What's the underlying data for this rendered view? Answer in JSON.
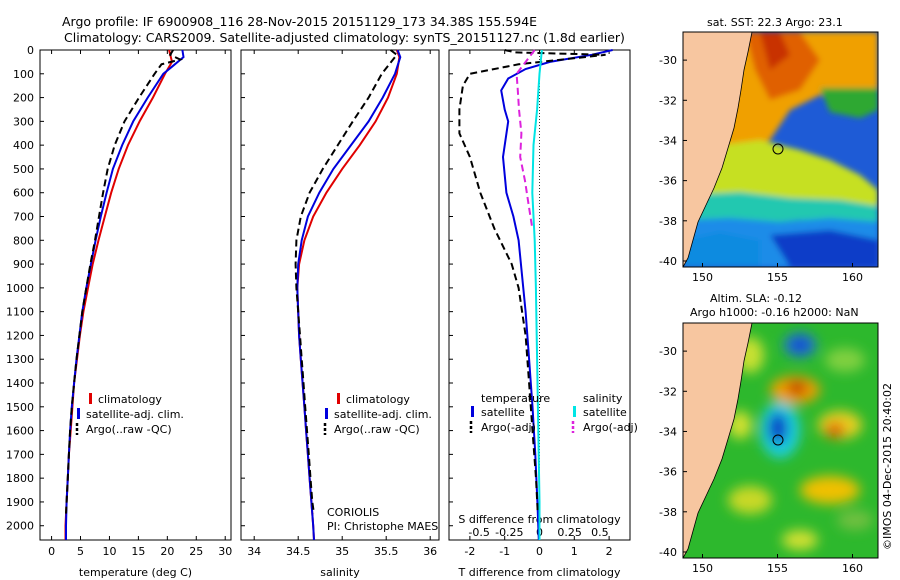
{
  "title_line1": "Argo profile: IF 6900908_116 28-Nov-2015 20151129_173 34.38S 155.594E",
  "title_line2": "Climatology: CARS2009. Satellite-adjusted climatology: synTS_20151127.nc (1.8d earlier)",
  "colors": {
    "climatology": "#e00000",
    "satellite": "#0000dd",
    "argo": "#000000",
    "sat_salinity": "#00e5e5",
    "argo_salinity": "#dd22dd",
    "land": "#f7c6a0"
  },
  "depth_ticks": [
    0,
    100,
    200,
    300,
    400,
    500,
    600,
    700,
    800,
    900,
    1000,
    1100,
    1200,
    1300,
    1400,
    1500,
    1600,
    1700,
    1800,
    1900,
    2000
  ],
  "legend_left": {
    "items": [
      "climatology",
      "satellite-adj. clim.",
      "Argo(..raw -QC)"
    ]
  },
  "diff_legend": {
    "temp_head": "temperature",
    "sal_head": "salinity",
    "temp_items": [
      "satellite",
      "Argo(-adj)"
    ],
    "sal_items": [
      "satellite",
      "Argo(-adj)"
    ]
  },
  "credit": {
    "line1": "CORIOLIS",
    "line2": "PI: Christophe MAES"
  },
  "sst_map": {
    "title": "sat. SST: 22.3 Argo: 23.1",
    "xticks": [
      "150",
      "155",
      "160"
    ],
    "yticks": [
      "-30",
      "-32",
      "-34",
      "-36",
      "-38",
      "-40"
    ]
  },
  "sla_map": {
    "title1": "Altim. SLA: -0.12",
    "title2": "Argo h1000: -0.16 h2000: NaN",
    "xticks": [
      "150",
      "155",
      "160"
    ],
    "yticks": [
      "-30",
      "-32",
      "-34",
      "-36",
      "-38",
      "-40"
    ]
  },
  "watermark": "©IMOS 04-Dec-2015 20:40:02",
  "chart_data": [
    {
      "type": "line",
      "xlabel": "temperature (deg C)",
      "xticks": [
        "0",
        "5",
        "10",
        "15",
        "20",
        "25",
        "30"
      ],
      "xlim": [
        -2,
        31
      ],
      "ylim": [
        2060,
        0
      ],
      "series": [
        {
          "name": "climatology",
          "color": "#e00000",
          "dash": false,
          "points": [
            [
              20.3,
              0
            ],
            [
              20.8,
              50
            ],
            [
              19.6,
              100
            ],
            [
              17.5,
              200
            ],
            [
              15.2,
              300
            ],
            [
              13.2,
              400
            ],
            [
              11.6,
              500
            ],
            [
              10.3,
              600
            ],
            [
              9.2,
              700
            ],
            [
              8.1,
              800
            ],
            [
              7.1,
              900
            ],
            [
              6.3,
              1000
            ],
            [
              5.5,
              1100
            ],
            [
              4.9,
              1200
            ],
            [
              4.4,
              1300
            ],
            [
              3.9,
              1400
            ],
            [
              3.6,
              1500
            ],
            [
              3.3,
              1600
            ],
            [
              3.0,
              1700
            ],
            [
              2.8,
              1800
            ],
            [
              2.6,
              1900
            ],
            [
              2.4,
              2000
            ],
            [
              2.4,
              2060
            ]
          ]
        },
        {
          "name": "satellite-adj. clim.",
          "color": "#0000dd",
          "dash": false,
          "points": [
            [
              22.6,
              0
            ],
            [
              22.8,
              30
            ],
            [
              20.8,
              70
            ],
            [
              19.3,
              100
            ],
            [
              16.6,
              200
            ],
            [
              14.1,
              300
            ],
            [
              12.2,
              400
            ],
            [
              10.6,
              500
            ],
            [
              9.5,
              600
            ],
            [
              8.5,
              700
            ],
            [
              7.6,
              800
            ],
            [
              6.8,
              900
            ],
            [
              6.0,
              1000
            ],
            [
              5.3,
              1100
            ],
            [
              4.8,
              1200
            ],
            [
              4.3,
              1300
            ],
            [
              3.9,
              1400
            ],
            [
              3.5,
              1500
            ],
            [
              3.2,
              1600
            ],
            [
              3.0,
              1700
            ],
            [
              2.8,
              1800
            ],
            [
              2.6,
              1900
            ],
            [
              2.5,
              2000
            ],
            [
              2.5,
              2060
            ]
          ]
        },
        {
          "name": "Argo(..raw -QC)",
          "color": "#000000",
          "dash": true,
          "points": [
            [
              21.0,
              0
            ],
            [
              20.5,
              20
            ],
            [
              22.2,
              40
            ],
            [
              19.0,
              60
            ],
            [
              17.8,
              100
            ],
            [
              15.1,
              200
            ],
            [
              12.6,
              300
            ],
            [
              10.9,
              400
            ],
            [
              9.7,
              500
            ],
            [
              8.9,
              600
            ],
            [
              8.2,
              700
            ],
            [
              7.5,
              800
            ],
            [
              6.7,
              900
            ],
            [
              6.0,
              1000
            ],
            [
              5.3,
              1100
            ],
            [
              4.8,
              1200
            ],
            [
              4.3,
              1300
            ],
            [
              3.9,
              1400
            ],
            [
              3.5,
              1500
            ],
            [
              3.2,
              1600
            ],
            [
              3.0,
              1700
            ],
            [
              2.8,
              1800
            ],
            [
              2.6,
              1900
            ],
            [
              2.5,
              1950
            ]
          ]
        }
      ]
    },
    {
      "type": "line",
      "xlabel": "salinity",
      "xticks": [
        "34",
        "34.5",
        "35",
        "35.5",
        "36"
      ],
      "xlim": [
        33.85,
        36.1
      ],
      "ylim": [
        2060,
        0
      ],
      "series": [
        {
          "name": "climatology",
          "color": "#e00000",
          "dash": false,
          "points": [
            [
              35.62,
              0
            ],
            [
              35.65,
              30
            ],
            [
              35.62,
              100
            ],
            [
              35.52,
              200
            ],
            [
              35.38,
              300
            ],
            [
              35.2,
              400
            ],
            [
              35.0,
              500
            ],
            [
              34.82,
              600
            ],
            [
              34.67,
              700
            ],
            [
              34.57,
              800
            ],
            [
              34.51,
              900
            ],
            [
              34.49,
              1000
            ],
            [
              34.5,
              1100
            ],
            [
              34.51,
              1200
            ],
            [
              34.53,
              1300
            ],
            [
              34.55,
              1400
            ],
            [
              34.57,
              1500
            ],
            [
              34.59,
              1600
            ],
            [
              34.61,
              1700
            ],
            [
              34.63,
              1800
            ],
            [
              34.65,
              1900
            ],
            [
              34.67,
              2000
            ],
            [
              34.68,
              2060
            ]
          ]
        },
        {
          "name": "satellite-adj. clim.",
          "color": "#0000dd",
          "dash": false,
          "points": [
            [
              35.63,
              0
            ],
            [
              35.66,
              30
            ],
            [
              35.6,
              100
            ],
            [
              35.46,
              200
            ],
            [
              35.3,
              300
            ],
            [
              35.1,
              400
            ],
            [
              34.9,
              500
            ],
            [
              34.74,
              600
            ],
            [
              34.61,
              700
            ],
            [
              34.54,
              800
            ],
            [
              34.5,
              900
            ],
            [
              34.49,
              1000
            ],
            [
              34.5,
              1100
            ],
            [
              34.51,
              1200
            ],
            [
              34.53,
              1300
            ],
            [
              34.55,
              1400
            ],
            [
              34.57,
              1500
            ],
            [
              34.59,
              1600
            ],
            [
              34.61,
              1700
            ],
            [
              34.63,
              1800
            ],
            [
              34.65,
              1900
            ],
            [
              34.67,
              2000
            ],
            [
              34.68,
              2060
            ]
          ]
        },
        {
          "name": "Argo(..raw -QC)",
          "color": "#000000",
          "dash": true,
          "points": [
            [
              35.55,
              0
            ],
            [
              35.62,
              20
            ],
            [
              35.45,
              100
            ],
            [
              35.3,
              200
            ],
            [
              35.12,
              300
            ],
            [
              34.95,
              400
            ],
            [
              34.78,
              500
            ],
            [
              34.63,
              600
            ],
            [
              34.53,
              700
            ],
            [
              34.48,
              800
            ],
            [
              34.47,
              900
            ],
            [
              34.48,
              1000
            ],
            [
              34.5,
              1100
            ],
            [
              34.52,
              1200
            ],
            [
              34.54,
              1300
            ],
            [
              34.56,
              1400
            ],
            [
              34.58,
              1500
            ],
            [
              34.6,
              1600
            ],
            [
              34.62,
              1700
            ],
            [
              34.64,
              1800
            ],
            [
              34.66,
              1900
            ],
            [
              34.68,
              1950
            ]
          ]
        }
      ]
    },
    {
      "type": "line",
      "xlabel": "T difference from climatology",
      "xlabel_top": "S difference from climatology",
      "xticks": [
        "-2",
        "-1",
        "0",
        "1",
        "2"
      ],
      "xticks_top": [
        "-0.5",
        "-0.25",
        "0",
        "0.25",
        "0.5"
      ],
      "xlim": [
        -2.6,
        2.6
      ],
      "ylim": [
        2060,
        0
      ],
      "series": [
        {
          "name": "satellite",
          "group": "temperature",
          "color": "#0000dd",
          "dash": false,
          "points": [
            [
              2.1,
              0
            ],
            [
              1.5,
              20
            ],
            [
              0.3,
              50
            ],
            [
              -0.4,
              80
            ],
            [
              -0.9,
              120
            ],
            [
              -1.1,
              170
            ],
            [
              -1.0,
              250
            ],
            [
              -0.9,
              300
            ],
            [
              -1.05,
              450
            ],
            [
              -0.95,
              600
            ],
            [
              -0.75,
              700
            ],
            [
              -0.6,
              800
            ],
            [
              -0.5,
              950
            ],
            [
              -0.4,
              1100
            ],
            [
              -0.3,
              1300
            ],
            [
              -0.2,
              1500
            ],
            [
              -0.12,
              1700
            ],
            [
              -0.06,
              1900
            ],
            [
              -0.02,
              2060
            ]
          ]
        },
        {
          "name": "Argo(-adj)",
          "group": "temperature",
          "color": "#000000",
          "dash": true,
          "points": [
            [
              -1.0,
              0
            ],
            [
              -0.7,
              10
            ],
            [
              1.9,
              20
            ],
            [
              -0.6,
              60
            ],
            [
              -2.0,
              100
            ],
            [
              -2.2,
              150
            ],
            [
              -2.3,
              250
            ],
            [
              -2.3,
              350
            ],
            [
              -2.0,
              450
            ],
            [
              -1.7,
              600
            ],
            [
              -1.3,
              750
            ],
            [
              -0.8,
              900
            ],
            [
              -0.6,
              1000
            ],
            [
              -0.4,
              1200
            ],
            [
              -0.3,
              1400
            ],
            [
              -0.2,
              1600
            ],
            [
              -0.1,
              1800
            ],
            [
              -0.05,
              1950
            ]
          ]
        },
        {
          "name": "satellite",
          "group": "salinity",
          "color": "#00e5e5",
          "dash": false,
          "points": [
            [
              0.02,
              0
            ],
            [
              0.0,
              100
            ],
            [
              -0.02,
              250
            ],
            [
              -0.05,
              400
            ],
            [
              -0.06,
              600
            ],
            [
              -0.04,
              800
            ],
            [
              -0.03,
              1000
            ],
            [
              -0.02,
              1300
            ],
            [
              -0.01,
              1600
            ],
            [
              0.0,
              1900
            ],
            [
              0.0,
              2060
            ]
          ]
        },
        {
          "name": "Argo(-adj)",
          "group": "salinity",
          "color": "#dd22dd",
          "dash": true,
          "points": [
            [
              -0.04,
              0
            ],
            [
              -0.19,
              100
            ],
            [
              -0.18,
              170
            ],
            [
              -0.17,
              250
            ],
            [
              -0.15,
              350
            ],
            [
              -0.16,
              450
            ],
            [
              -0.12,
              550
            ],
            [
              -0.09,
              650
            ],
            [
              -0.06,
              750
            ]
          ]
        }
      ]
    }
  ]
}
